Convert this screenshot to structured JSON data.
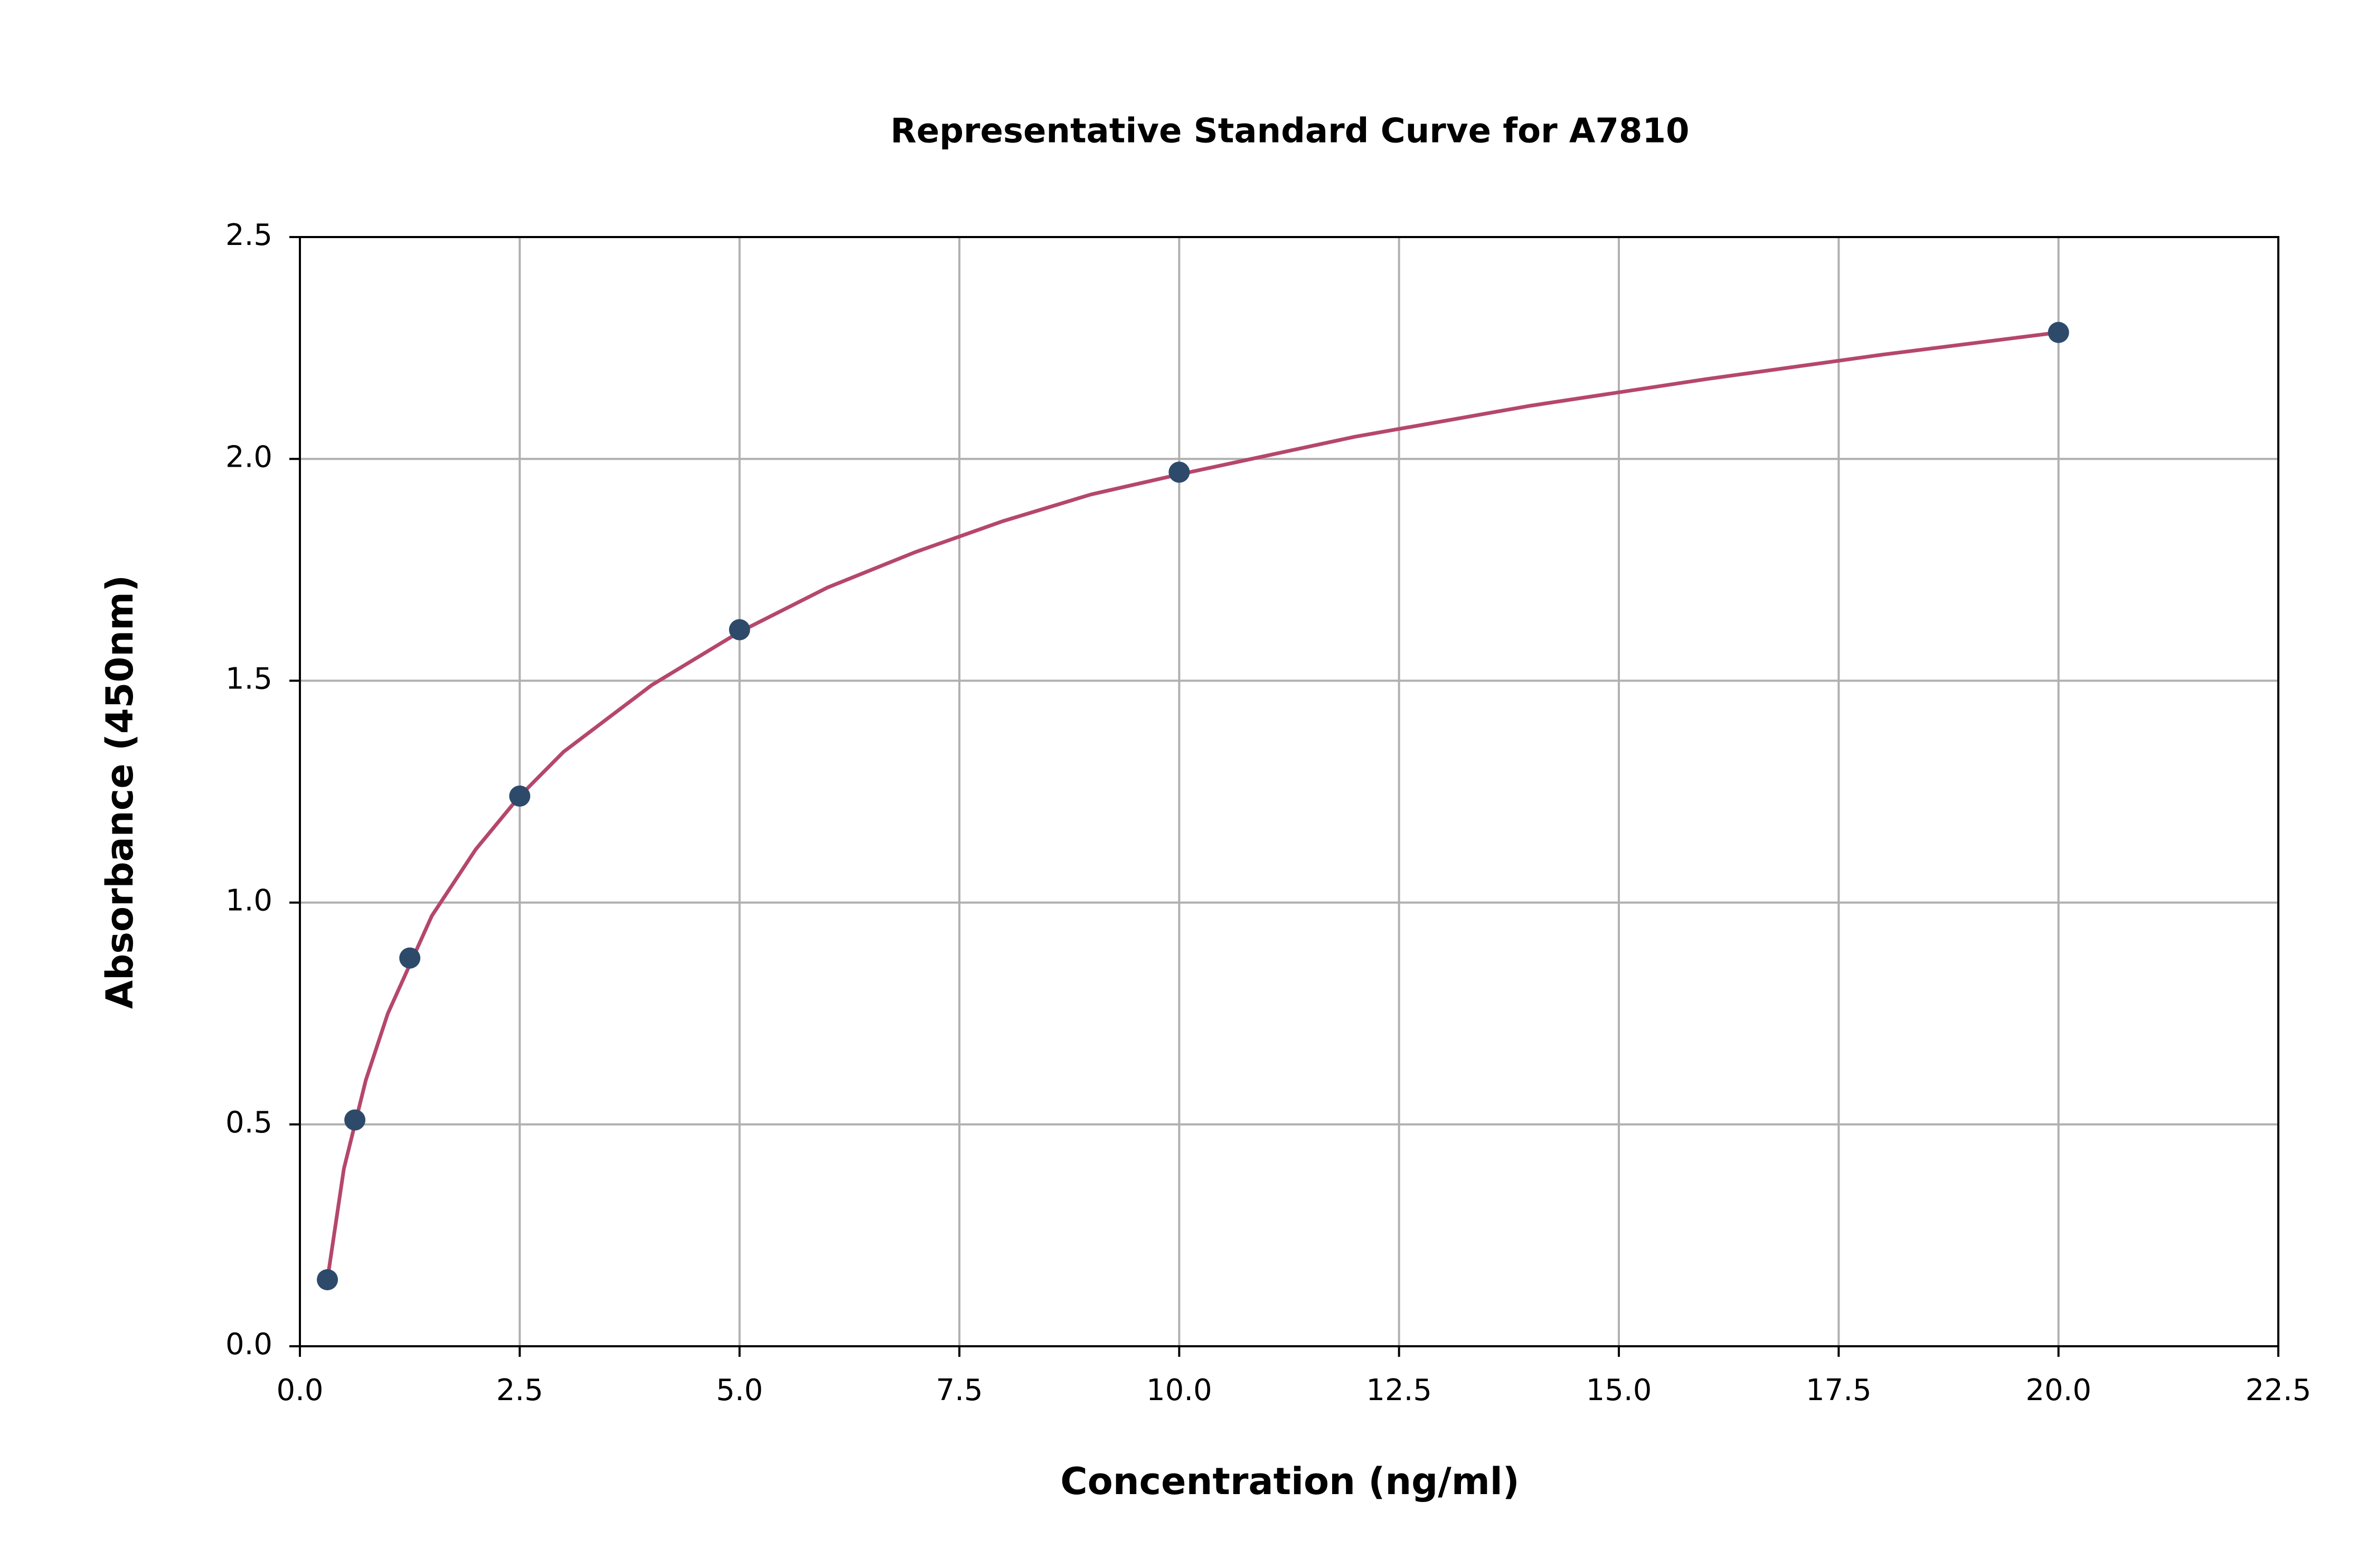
{
  "chart_data": {
    "type": "scatter",
    "title": "Representative Standard Curve for A7810",
    "x_label": "Concentration (ng/ml)",
    "y_label": "Absorbance (450nm)",
    "series": [
      {
        "kind": "line",
        "color": "#b5476b",
        "x": [
          0.3125,
          0.5,
          0.75,
          1,
          1.5,
          2,
          2.5,
          3,
          4,
          5,
          6,
          7,
          8,
          9,
          10,
          12,
          14,
          16,
          18,
          20
        ],
        "values": [
          0.15,
          0.4,
          0.6,
          0.75,
          0.97,
          1.12,
          1.24,
          1.34,
          1.49,
          1.61,
          1.71,
          1.79,
          1.86,
          1.92,
          1.965,
          2.05,
          2.12,
          2.18,
          2.235,
          2.285
        ]
      },
      {
        "kind": "points",
        "color": "#2e4a6b",
        "x": [
          0.3125,
          0.625,
          1.25,
          2.5,
          5,
          10,
          20
        ],
        "values": [
          0.15,
          0.51,
          0.875,
          1.24,
          1.615,
          1.97,
          2.285
        ]
      }
    ],
    "xlim": [
      0,
      22.5
    ],
    "xticks": [
      {
        "value": 0,
        "label": "0.0"
      },
      2.5,
      {
        "value": 5,
        "label": "5.0"
      },
      7.5,
      {
        "value": 10,
        "label": "10.0"
      },
      12.5,
      {
        "value": 15,
        "label": "15.0"
      },
      17.5,
      {
        "value": 20,
        "label": "20.0"
      },
      22.5
    ],
    "ylim": [
      0,
      2.5
    ],
    "yticks": [
      {
        "value": 0,
        "label": "0.0"
      },
      0.5,
      {
        "value": 1,
        "label": "1.0"
      },
      1.5,
      {
        "value": 2,
        "label": "2.0"
      },
      2.5
    ],
    "grid": true
  }
}
